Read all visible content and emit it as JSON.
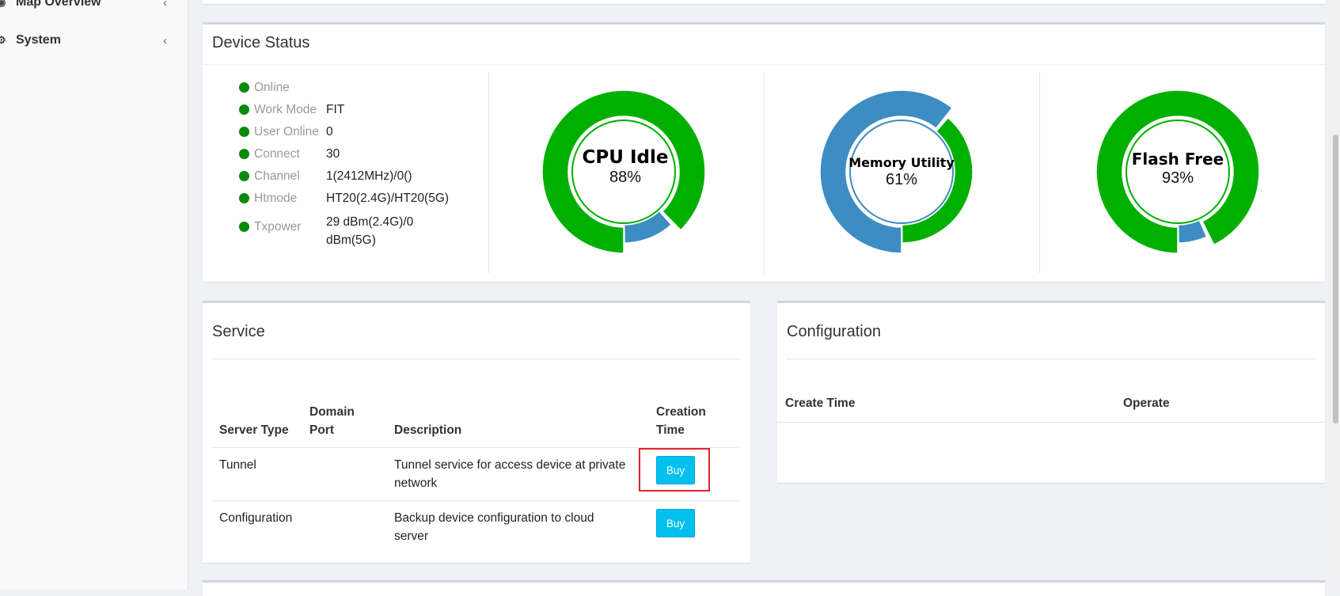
{
  "sidebar": {
    "items": [
      {
        "label": "Map Overview",
        "icon": "map-icon"
      },
      {
        "label": "System",
        "icon": "gear-icon"
      }
    ]
  },
  "device_status": {
    "title": "Device Status",
    "items": [
      {
        "label": "Online",
        "value": ""
      },
      {
        "label": "Work Mode",
        "value": "FIT"
      },
      {
        "label": "User Online",
        "value": "0"
      },
      {
        "label": "Connect",
        "value": "30"
      },
      {
        "label": "Channel",
        "value": "1(2412MHz)/0()"
      },
      {
        "label": "Htmode",
        "value": "HT20(2.4G)/HT20(5G)"
      },
      {
        "label": "Txpower",
        "value_line1": "29 dBm(2.4G)/0",
        "value_line2": "dBm(5G)"
      }
    ],
    "status_color": "#0a8a0a",
    "gauges": [
      {
        "label": "CPU Idle",
        "value_text": "88%",
        "percent": 88,
        "outer_color": "#00b000",
        "inner_color": "#3d8dc2"
      },
      {
        "label": "Memory Utility",
        "value_text": "61%",
        "percent": 61,
        "outer_color": "#3d8dc2",
        "inner_color": "#00b000"
      },
      {
        "label": "Flash Free",
        "value_text": "93%",
        "percent": 93,
        "outer_color": "#00b000",
        "inner_color": "#3d8dc2"
      }
    ]
  },
  "service": {
    "title": "Service",
    "columns": {
      "server_type": "Server Type",
      "domain_port_1": "Domain",
      "domain_port_2": "Port",
      "description": "Description",
      "creation_time_1": "Creation",
      "creation_time_2": "Time"
    },
    "rows": [
      {
        "server_type": "Tunnel",
        "domain_port": "",
        "description_1": "Tunnel service for access device at private",
        "description_2": "network",
        "action": "Buy"
      },
      {
        "server_type": "Configuration",
        "domain_port": "",
        "description_1": "Backup device configuration to cloud",
        "description_2": "server",
        "action": "Buy"
      }
    ]
  },
  "configuration": {
    "title": "Configuration",
    "columns": {
      "create_time": "Create Time",
      "operate": "Operate"
    }
  },
  "colors": {
    "button": "#00c0ef",
    "highlight": "#e0242b"
  }
}
